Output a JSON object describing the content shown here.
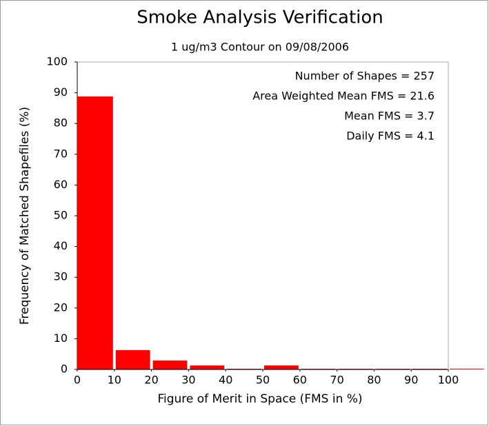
{
  "chart_data": {
    "type": "histogram",
    "title": "Smoke Analysis Verification",
    "subtitle": "1 ug/m3 Contour on 09/08/2006",
    "x_label": "Figure of Merit in Space (FMS in %)",
    "y_label": "Frequency of Matched Shapefiles (%)",
    "annotations": [
      "Number of Shapes = 257",
      "Area Weighted Mean FMS = 21.6",
      "Mean FMS = 3.7",
      "Daily FMS = 4.1"
    ],
    "bins": [
      0,
      10,
      20,
      30,
      40,
      50,
      60,
      70,
      80,
      90,
      100,
      110
    ],
    "values": [
      88.8,
      6.3,
      2.9,
      1.3,
      0,
      1.3,
      0,
      0,
      0,
      0,
      0
    ],
    "color": "#ff0000",
    "xlim": [
      0,
      100
    ],
    "ylim": [
      0,
      100
    ],
    "xticks": [
      0,
      10,
      20,
      30,
      40,
      50,
      60,
      70,
      80,
      90,
      100
    ],
    "yticks": [
      0,
      10,
      20,
      30,
      40,
      50,
      60,
      70,
      80,
      90,
      100
    ]
  }
}
